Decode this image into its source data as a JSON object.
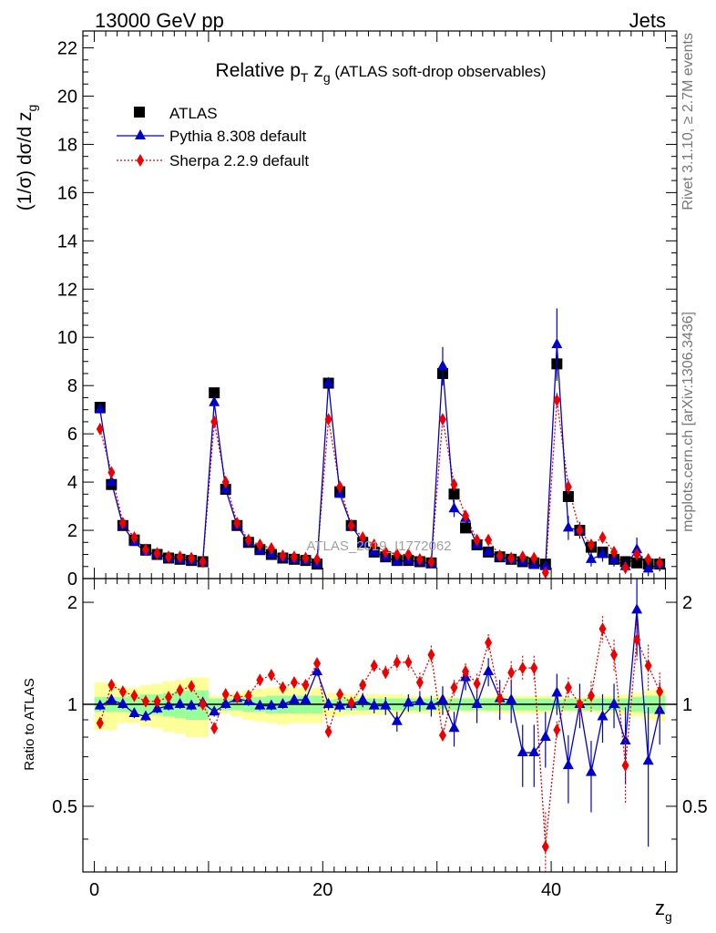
{
  "header": {
    "left": "13000 GeV pp",
    "right": "Jets"
  },
  "side_labels": {
    "rivet": "Rivet 3.1.10, ≥ 2.7M events",
    "mcplots": "mcplots.cern.ch [arXiv:1306.3436]"
  },
  "watermark": "ATLAS_2019_I1772062",
  "title": {
    "part1": "Relative p",
    "sub1": "T",
    "part2": " z",
    "sub2": "g",
    "part3": " (ATLAS soft-drop observables)"
  },
  "legend": [
    {
      "label": "ATLAS",
      "color": "#000000",
      "marker": "square"
    },
    {
      "label": "Pythia 8.308 default",
      "color": "#0000cc",
      "marker": "triangle"
    },
    {
      "label": "Sherpa 2.2.9 default",
      "color": "#ee0000",
      "marker": "diamond"
    }
  ],
  "axes": {
    "ylabel_main": "(1/σ) dσ/d z",
    "ylabel_main_sub": "g",
    "ylabel_ratio": "Ratio to ATLAS",
    "xlabel": "z",
    "xlabel_sub": "g"
  },
  "chart_data": {
    "type": "scatter",
    "x": [
      0.5,
      1.5,
      2.5,
      3.5,
      4.5,
      5.5,
      6.5,
      7.5,
      8.5,
      9.5,
      10.5,
      11.5,
      12.5,
      13.5,
      14.5,
      15.5,
      16.5,
      17.5,
      18.5,
      19.5,
      20.5,
      21.5,
      22.5,
      23.5,
      24.5,
      25.5,
      26.5,
      27.5,
      28.5,
      29.5,
      30.5,
      31.5,
      32.5,
      33.5,
      34.5,
      35.5,
      36.5,
      37.5,
      38.5,
      39.5,
      40.5,
      41.5,
      42.5,
      43.5,
      44.5,
      45.5,
      46.5,
      47.5,
      48.5,
      49.5
    ],
    "xlim": [
      -1,
      51
    ],
    "xticks": [
      0,
      20,
      40
    ],
    "main": {
      "ylim": [
        0,
        22.7
      ],
      "yticks": [
        0,
        2,
        4,
        6,
        8,
        10,
        12,
        14,
        16,
        18,
        20,
        22
      ],
      "series": [
        {
          "name": "ATLAS",
          "color": "#000000",
          "values": [
            7.1,
            3.9,
            2.2,
            1.6,
            1.2,
            1.0,
            0.85,
            0.8,
            0.75,
            0.7,
            7.7,
            3.7,
            2.2,
            1.5,
            1.2,
            1.0,
            0.85,
            0.8,
            0.75,
            0.6,
            8.1,
            3.6,
            2.2,
            1.5,
            1.1,
            0.9,
            0.75,
            0.75,
            0.7,
            0.65,
            8.5,
            3.5,
            2.1,
            1.4,
            1.1,
            0.9,
            0.8,
            0.7,
            0.65,
            0.6,
            8.9,
            3.4,
            2.0,
            1.3,
            1.1,
            0.8,
            0.7,
            0.65,
            0.6,
            0.6
          ]
        },
        {
          "name": "Pythia 8.308 default",
          "color": "#0000cc",
          "values": [
            7.0,
            4.0,
            2.2,
            1.5,
            1.1,
            1.0,
            0.85,
            0.8,
            0.75,
            0.7,
            7.3,
            3.7,
            2.2,
            1.5,
            1.15,
            1.0,
            0.85,
            0.8,
            0.75,
            0.6,
            8.1,
            3.5,
            2.2,
            1.5,
            1.1,
            0.9,
            0.7,
            0.75,
            0.7,
            0.6,
            8.8,
            2.9,
            2.5,
            1.4,
            1.1,
            0.9,
            0.8,
            0.7,
            0.55,
            0.5,
            9.7,
            2.1,
            2.0,
            0.8,
            1.0,
            0.8,
            0.5,
            1.2,
            0.4,
            0.6
          ],
          "errors": [
            0.05,
            0.05,
            0.05,
            0.05,
            0.05,
            0.05,
            0.05,
            0.05,
            0.05,
            0.05,
            0.1,
            0.1,
            0.05,
            0.05,
            0.05,
            0.05,
            0.05,
            0.05,
            0.05,
            0.05,
            0.2,
            0.15,
            0.1,
            0.05,
            0.05,
            0.05,
            0.05,
            0.05,
            0.05,
            0.05,
            0.8,
            0.35,
            0.2,
            0.15,
            0.1,
            0.1,
            0.1,
            0.1,
            0.15,
            0.15,
            1.5,
            0.5,
            0.35,
            0.3,
            0.3,
            0.3,
            0.3,
            0.5,
            0.3,
            0.3
          ]
        },
        {
          "name": "Sherpa 2.2.9 default",
          "color": "#ee0000",
          "values": [
            6.2,
            4.4,
            2.3,
            1.7,
            1.2,
            1.05,
            0.9,
            0.9,
            0.85,
            0.7,
            6.5,
            4.0,
            2.3,
            1.6,
            1.4,
            1.25,
            0.95,
            0.9,
            0.85,
            0.8,
            6.6,
            3.8,
            2.2,
            1.7,
            1.4,
            1.1,
            1.0,
            1.0,
            0.8,
            0.7,
            6.6,
            3.9,
            2.6,
            1.6,
            1.6,
            0.95,
            0.85,
            0.9,
            0.85,
            0.25,
            7.4,
            3.8,
            2.0,
            1.4,
            1.7,
            1.1,
            0.45,
            1.0,
            0.8,
            0.65
          ],
          "errors": [
            0.05,
            0.05,
            0.05,
            0.05,
            0.05,
            0.05,
            0.05,
            0.05,
            0.05,
            0.05,
            0.1,
            0.1,
            0.05,
            0.05,
            0.05,
            0.05,
            0.05,
            0.05,
            0.05,
            0.05,
            0.15,
            0.1,
            0.05,
            0.05,
            0.05,
            0.05,
            0.05,
            0.05,
            0.05,
            0.05,
            0.2,
            0.15,
            0.1,
            0.1,
            0.1,
            0.1,
            0.1,
            0.1,
            0.1,
            0.1,
            0.3,
            0.3,
            0.2,
            0.15,
            0.2,
            0.15,
            0.15,
            0.2,
            0.15,
            0.15
          ]
        }
      ]
    },
    "ratio": {
      "ylim": [
        0.32,
        2.35
      ],
      "yticks": [
        0.5,
        1,
        2
      ],
      "ylog": true,
      "band_yellow": [
        0.16,
        0.16,
        0.12,
        0.12,
        0.14,
        0.15,
        0.17,
        0.18,
        0.2,
        0.2,
        0.06,
        0.06,
        0.08,
        0.1,
        0.11,
        0.12,
        0.13,
        0.12,
        0.12,
        0.12,
        0.08,
        0.08,
        0.07,
        0.07,
        0.07,
        0.07,
        0.07,
        0.06,
        0.06,
        0.06,
        0.06,
        0.05,
        0.05,
        0.05,
        0.05,
        0.06,
        0.06,
        0.06,
        0.06,
        0.06,
        0.05,
        0.05,
        0.05,
        0.05,
        0.06,
        0.06,
        0.07,
        0.08,
        0.1,
        0.11
      ],
      "band_green": [
        0.05,
        0.05,
        0.05,
        0.06,
        0.07,
        0.07,
        0.08,
        0.09,
        0.1,
        0.1,
        0.04,
        0.04,
        0.04,
        0.05,
        0.05,
        0.06,
        0.06,
        0.06,
        0.06,
        0.06,
        0.03,
        0.04,
        0.04,
        0.04,
        0.04,
        0.04,
        0.04,
        0.04,
        0.04,
        0.04,
        0.03,
        0.04,
        0.04,
        0.04,
        0.04,
        0.04,
        0.04,
        0.04,
        0.04,
        0.04,
        0.03,
        0.04,
        0.04,
        0.04,
        0.04,
        0.04,
        0.04,
        0.05,
        0.06,
        0.06
      ],
      "series": [
        {
          "name": "Pythia 8.308 default",
          "color": "#0000cc",
          "values": [
            0.99,
            1.03,
            1.0,
            0.94,
            0.92,
            0.97,
            0.99,
            1.0,
            0.99,
            1.01,
            0.95,
            1.0,
            1.04,
            1.02,
            0.99,
            0.99,
            1.0,
            1.03,
            1.03,
            1.25,
            1.0,
            0.99,
            1.0,
            1.03,
            0.99,
            0.99,
            0.89,
            1.01,
            1.02,
            0.99,
            1.03,
            0.85,
            1.2,
            1.0,
            1.25,
            1.04,
            1.03,
            0.72,
            0.72,
            0.8,
            1.08,
            0.66,
            1.0,
            0.63,
            0.92,
            1.0,
            0.78,
            1.9,
            0.68,
            0.96
          ],
          "errors": [
            0.03,
            0.03,
            0.03,
            0.03,
            0.03,
            0.03,
            0.03,
            0.03,
            0.03,
            0.03,
            0.03,
            0.03,
            0.03,
            0.03,
            0.03,
            0.03,
            0.03,
            0.03,
            0.03,
            0.04,
            0.04,
            0.04,
            0.04,
            0.05,
            0.05,
            0.06,
            0.06,
            0.06,
            0.07,
            0.07,
            0.1,
            0.1,
            0.1,
            0.12,
            0.12,
            0.14,
            0.15,
            0.15,
            0.15,
            0.15,
            0.15,
            0.15,
            0.15,
            0.15,
            0.15,
            0.15,
            0.2,
            0.5,
            0.3,
            0.2
          ]
        },
        {
          "name": "Sherpa 2.2.9 default",
          "color": "#ee0000",
          "values": [
            0.88,
            1.14,
            1.09,
            1.06,
            1.02,
            1.02,
            1.05,
            1.1,
            1.13,
            1.0,
            0.85,
            1.07,
            1.05,
            1.06,
            1.18,
            1.22,
            1.12,
            1.16,
            1.14,
            1.32,
            0.83,
            1.07,
            1.01,
            1.14,
            1.3,
            1.24,
            1.33,
            1.33,
            1.16,
            1.4,
            0.81,
            1.12,
            1.25,
            1.15,
            1.52,
            1.04,
            1.24,
            1.28,
            1.28,
            0.38,
            0.84,
            1.12,
            1.0,
            1.06,
            1.67,
            1.4,
            0.66,
            1.55,
            1.3,
            1.09
          ],
          "errors": [
            0.02,
            0.02,
            0.02,
            0.02,
            0.02,
            0.02,
            0.02,
            0.02,
            0.02,
            0.02,
            0.03,
            0.02,
            0.02,
            0.03,
            0.03,
            0.03,
            0.03,
            0.03,
            0.03,
            0.04,
            0.03,
            0.03,
            0.03,
            0.04,
            0.05,
            0.06,
            0.07,
            0.07,
            0.08,
            0.09,
            0.04,
            0.06,
            0.07,
            0.08,
            0.09,
            0.1,
            0.1,
            0.11,
            0.11,
            0.1,
            0.05,
            0.08,
            0.1,
            0.11,
            0.15,
            0.15,
            0.15,
            0.2,
            0.2,
            0.15
          ]
        }
      ]
    }
  }
}
